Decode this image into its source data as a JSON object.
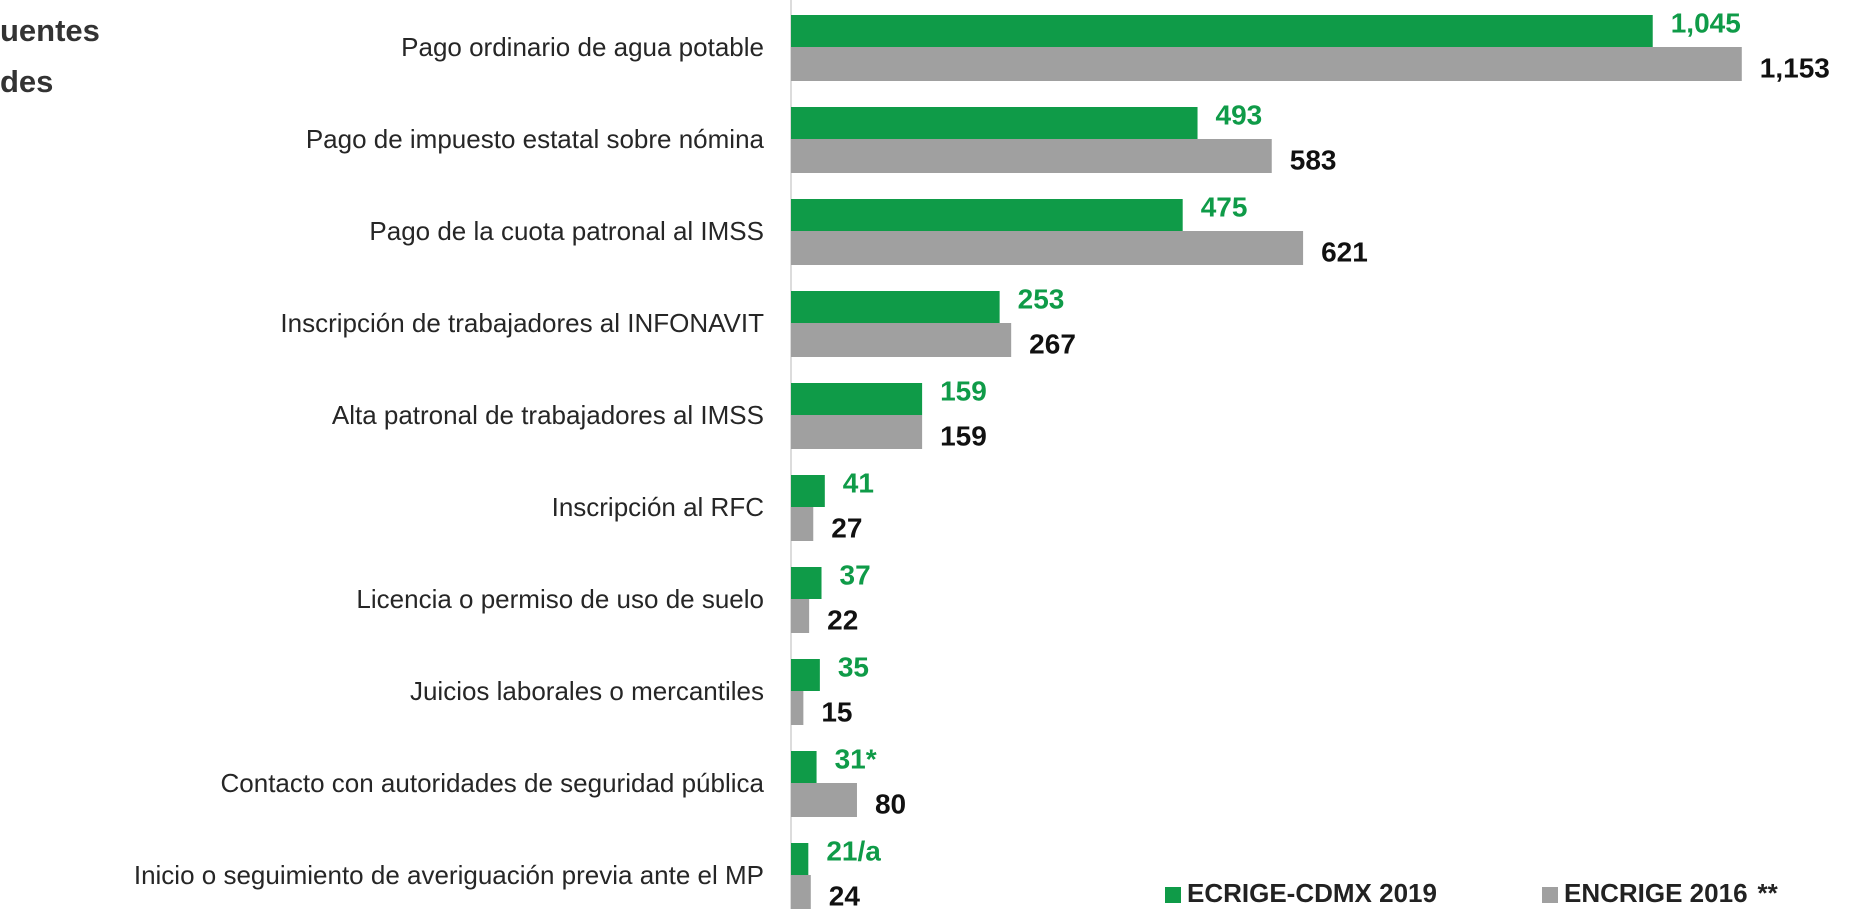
{
  "chart_data": {
    "type": "barh",
    "title_lines": [
      "uentes",
      "des"
    ],
    "categories": [
      "Pago ordinario de agua potable",
      "Pago de impuesto estatal sobre nómina",
      "Pago de la cuota patronal al IMSS",
      "Inscripción de trabajadores al INFONAVIT",
      "Alta patronal de trabajadores al IMSS",
      "Inscripción al RFC",
      "Licencia o permiso de uso de suelo",
      "Juicios laborales o mercantiles",
      "Contacto con autoridades de seguridad pública",
      "Inicio o seguimiento de averiguación previa ante el MP"
    ],
    "series": [
      {
        "name": "ECRIGE-CDMX 2019",
        "color": "#0f9b48",
        "label_color": "#0f9b48",
        "values": [
          1045,
          493,
          475,
          253,
          159,
          41,
          37,
          35,
          31,
          21
        ],
        "value_labels": [
          "1,045",
          "493",
          "475",
          "253",
          "159",
          "41",
          "37",
          "35",
          "31*",
          "21/a"
        ]
      },
      {
        "name": "ENCRIGE 2016",
        "color": "#a0a0a0",
        "label_color": "#111111",
        "values": [
          1153,
          583,
          621,
          267,
          159,
          27,
          22,
          15,
          80,
          24
        ],
        "value_labels": [
          "1,153",
          "583",
          "621",
          "267",
          "159",
          "27",
          "22",
          "15",
          "80",
          "24"
        ]
      }
    ],
    "legend_note": "**",
    "xlim": [
      0,
      1300
    ]
  }
}
